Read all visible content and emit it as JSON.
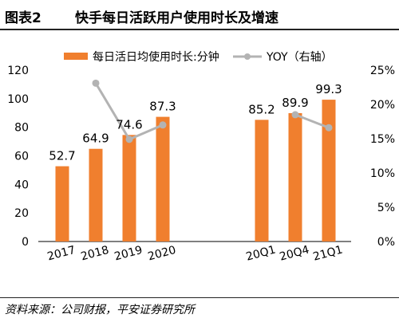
{
  "header": {
    "figure_label": "图表2",
    "title": "快手每日活跃用户使用时长及增速"
  },
  "source": "资料来源：公司财报，平安证券研究所",
  "chart_data": {
    "type": "bar",
    "categories": [
      "2017",
      "2018",
      "2019",
      "2020",
      "20Q1",
      "20Q4",
      "21Q1"
    ],
    "series": [
      {
        "name": "每日活日均使用时长:分钟",
        "kind": "bar",
        "axis": "left",
        "color": "#f07f2e",
        "values": [
          52.7,
          64.9,
          74.6,
          87.3,
          85.2,
          89.9,
          99.3
        ],
        "labels": [
          "52.7",
          "64.9",
          "74.6",
          "87.3",
          "85.2",
          "89.9",
          "99.3"
        ]
      },
      {
        "name": "YOY（右轴）",
        "kind": "line",
        "axis": "right",
        "color": "#b3b3b3",
        "segments": [
          [
            {
              "x": "2018",
              "y": 23.1
            },
            {
              "x": "2019",
              "y": 14.9
            },
            {
              "x": "2020",
              "y": 17.0
            }
          ],
          [
            {
              "x": "20Q4",
              "y": 18.5
            },
            {
              "x": "21Q1",
              "y": 16.6
            }
          ]
        ]
      }
    ],
    "left_axis": {
      "min": 0,
      "max": 120,
      "step": 20,
      "ticks": [
        "0",
        "20",
        "40",
        "60",
        "80",
        "100",
        "120"
      ]
    },
    "right_axis": {
      "min": 0,
      "max": 25,
      "step": 5,
      "ticks": [
        "0%",
        "5%",
        "10%",
        "15%",
        "20%",
        "25%"
      ]
    },
    "grid": false,
    "legend_position": "top"
  }
}
